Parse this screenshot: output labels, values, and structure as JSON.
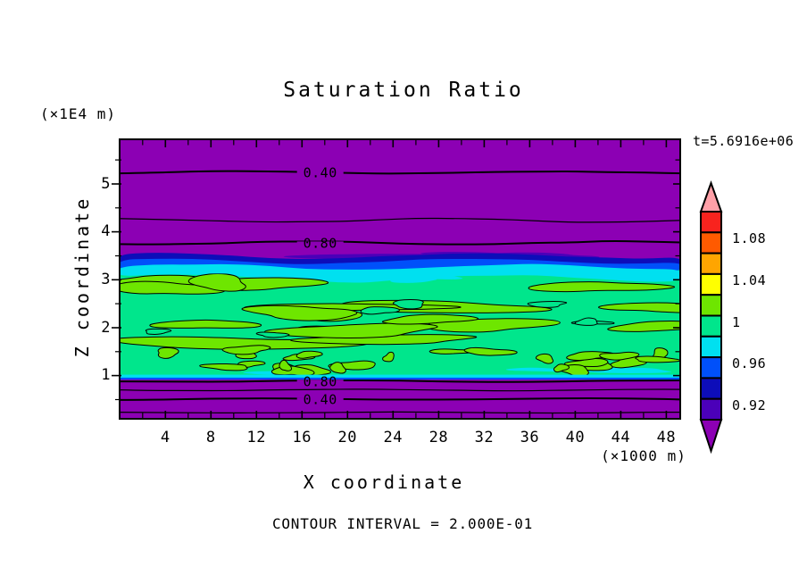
{
  "page": {
    "title": "Saturation Ratio",
    "time_annotation": "t=5.6916e+06",
    "y_axis_unit": "(×1E4 m)",
    "x_axis_unit": "(×1000 m)",
    "y_axis_title": "Z coordinate",
    "x_axis_title": "X coordinate",
    "footer_note": "CONTOUR INTERVAL = 2.000E-01"
  },
  "chart_data": {
    "type": "contour",
    "title": "Saturation Ratio",
    "xlabel": "X coordinate",
    "ylabel": "Z coordinate",
    "x_unit": "(×1000 m)",
    "y_unit": "(×1E4 m)",
    "time_annotation": "t=5.6916e+06",
    "contour_interval": 0.2,
    "contour_interval_note": "CONTOUR INTERVAL = 2.000E-01",
    "x_range": [
      -0.1,
      49.3
    ],
    "y_range": [
      0.08,
      5.95
    ],
    "x_ticks_major": [
      4,
      8,
      12,
      16,
      20,
      24,
      28,
      32,
      36,
      40,
      44,
      48
    ],
    "x_ticks_minor": [
      2,
      6,
      10,
      14,
      18,
      22,
      26,
      30,
      34,
      38,
      42,
      46
    ],
    "y_ticks_major": [
      1,
      2,
      3,
      4,
      5
    ],
    "y_ticks_minor": [
      0.5,
      1.5,
      2.5,
      3.5,
      4.5,
      5.5
    ],
    "contour_label_x": 17.6,
    "contour_lines": [
      {
        "value": 0.4,
        "z": 5.24,
        "labeled": true,
        "label": "0.40"
      },
      {
        "value": 0.6,
        "z": 4.24,
        "labeled": false,
        "label": ""
      },
      {
        "value": 0.8,
        "z": 3.77,
        "labeled": true,
        "label": "0.80"
      },
      {
        "value": 0.8,
        "z": 0.885,
        "labeled": true,
        "label": "0.80"
      },
      {
        "value": 0.6,
        "z": 0.7,
        "labeled": false,
        "label": ""
      },
      {
        "value": 0.4,
        "z": 0.51,
        "labeled": true,
        "label": "0.40"
      },
      {
        "value": 0.2,
        "z": 0.23,
        "labeled": false,
        "label": ""
      }
    ],
    "field_structure": {
      "description": "Saturation < 0.9 (purple) above z≈3.5 and below z≈0.9; near-saturated layer (ratio ≈ 0.96–1.02) between z≈1.0 and z≈3.2 with a sharp blue transition band at its top",
      "violet_patch_z": [
        3.4,
        3.56
      ],
      "navy_band_z": [
        3.28,
        3.5
      ],
      "blue_band_z": [
        3.16,
        3.39
      ],
      "cyan_band_z": [
        3.03,
        3.27
      ],
      "green_layer_z": [
        1.02,
        3.12
      ],
      "bottom_cyan_strip_z": [
        0.955,
        1.02
      ],
      "bottom_blue_strip_z": [
        0.915,
        0.958
      ]
    },
    "texture": {
      "seed": 11,
      "streaks": 18,
      "fragments": 26,
      "holes": 7,
      "wisps": 6,
      "bottom_wisps": 3,
      "violet_patches": 4
    },
    "colorbar": {
      "boundary_labels": [
        {
          "text": "1.08",
          "level": 1.08
        },
        {
          "text": "1.04",
          "level": 1.04
        },
        {
          "text": "1",
          "level": 1.0
        },
        {
          "text": "0.96",
          "level": 0.96
        },
        {
          "text": "0.92",
          "level": 0.92
        }
      ],
      "top_arrow": {
        "range": "> 1.10",
        "color": "#FFA0A8"
      },
      "segments": [
        {
          "range": "1.08-1.10",
          "color": "#F8231E"
        },
        {
          "range": "1.06-1.08",
          "color": "#FF5A00"
        },
        {
          "range": "1.04-1.06",
          "color": "#FFA500"
        },
        {
          "range": "1.02-1.04",
          "color": "#FFFF00"
        },
        {
          "range": "1.00-1.02",
          "color": "#6EE600"
        },
        {
          "range": "0.98-1.00",
          "color": "#00E68C"
        },
        {
          "range": "0.96-0.98",
          "color": "#00E0F0"
        },
        {
          "range": "0.94-0.96",
          "color": "#0050FA"
        },
        {
          "range": "0.92-0.94",
          "color": "#0D0DB9"
        },
        {
          "range": "0.90-0.92",
          "color": "#4B00B9"
        }
      ],
      "bottom_arrow": {
        "range": "< 0.90",
        "color": "#8C00B4"
      }
    },
    "colors": {
      "background_purple": "#8C00B4",
      "violet": "#4B00B9",
      "navy": "#0D0DB9",
      "blue": "#0050FA",
      "cyan": "#00E0F0",
      "spring_green": "#00E68C",
      "chartreuse": "#6EE600",
      "axis": "#000000"
    }
  }
}
